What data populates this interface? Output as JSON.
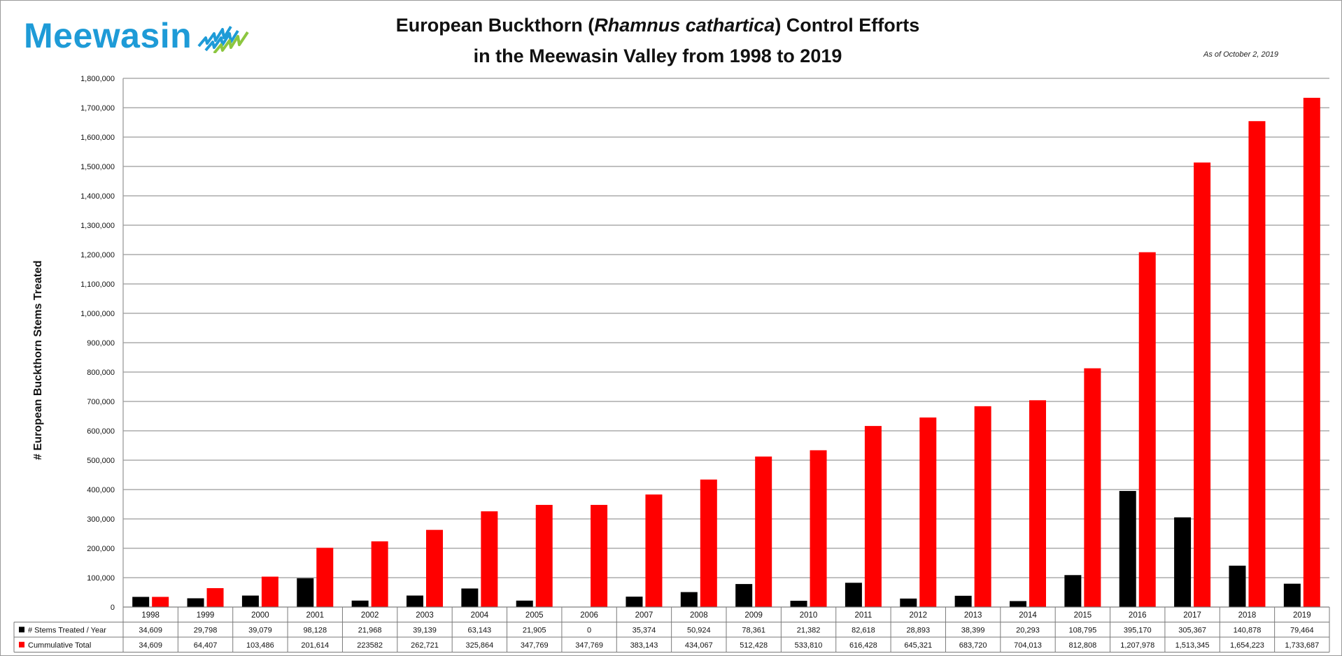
{
  "logo": {
    "text": "Meewasin"
  },
  "title": {
    "part1": "European Buckthorn (",
    "italic": "Rhamnus cathartica",
    "part2": ") Control Efforts",
    "line2": "in the Meewasin Valley from 1998 to 2019"
  },
  "note": "As of October 2, 2019",
  "colors": {
    "stems": "#000000",
    "cumulative": "#ff0000",
    "logo": "#1e9bd7",
    "grid": "#9a9a9a"
  },
  "chart_data": {
    "type": "bar",
    "ylabel": "# European Buckthorn Stems Treated",
    "ylim": [
      0,
      1800000
    ],
    "ytick_step": 100000,
    "grid": true,
    "legend": "data-table",
    "categories": [
      "1998",
      "1999",
      "2000",
      "2001",
      "2002",
      "2003",
      "2004",
      "2005",
      "2006",
      "2007",
      "2008",
      "2009",
      "2010",
      "2011",
      "2012",
      "2013",
      "2014",
      "2015",
      "2016",
      "2017",
      "2018",
      "2019"
    ],
    "series": [
      {
        "name": "# Stems Treated / Year",
        "color": "#000000",
        "values": [
          34609,
          29798,
          39079,
          98128,
          21968,
          39139,
          63143,
          21905,
          0,
          35374,
          50924,
          78361,
          21382,
          82618,
          28893,
          38399,
          20293,
          108795,
          395170,
          305367,
          140878,
          79464
        ],
        "labels": [
          "34,609",
          "29,798",
          "39,079",
          "98,128",
          "21,968",
          "39,139",
          "63,143",
          "21,905",
          "0",
          "35,374",
          "50,924",
          "78,361",
          "21,382",
          "82,618",
          "28,893",
          "38,399",
          "20,293",
          "108,795",
          "395,170",
          "305,367",
          "140,878",
          "79,464"
        ]
      },
      {
        "name": "Cummulative Total",
        "color": "#ff0000",
        "values": [
          34609,
          64407,
          103486,
          201614,
          223582,
          262721,
          325864,
          347769,
          347769,
          383143,
          434067,
          512428,
          533810,
          616428,
          645321,
          683720,
          704013,
          812808,
          1207978,
          1513345,
          1654223,
          1733687
        ],
        "labels": [
          "34,609",
          "64,407",
          "103,486",
          "201,614",
          "223582",
          "262,721",
          "325,864",
          "347,769",
          "347,769",
          "383,143",
          "434,067",
          "512,428",
          "533,810",
          "616,428",
          "645,321",
          "683,720",
          "704,013",
          "812,808",
          "1,207,978",
          "1,513,345",
          "1,654,223",
          "1,733,687"
        ]
      }
    ]
  }
}
